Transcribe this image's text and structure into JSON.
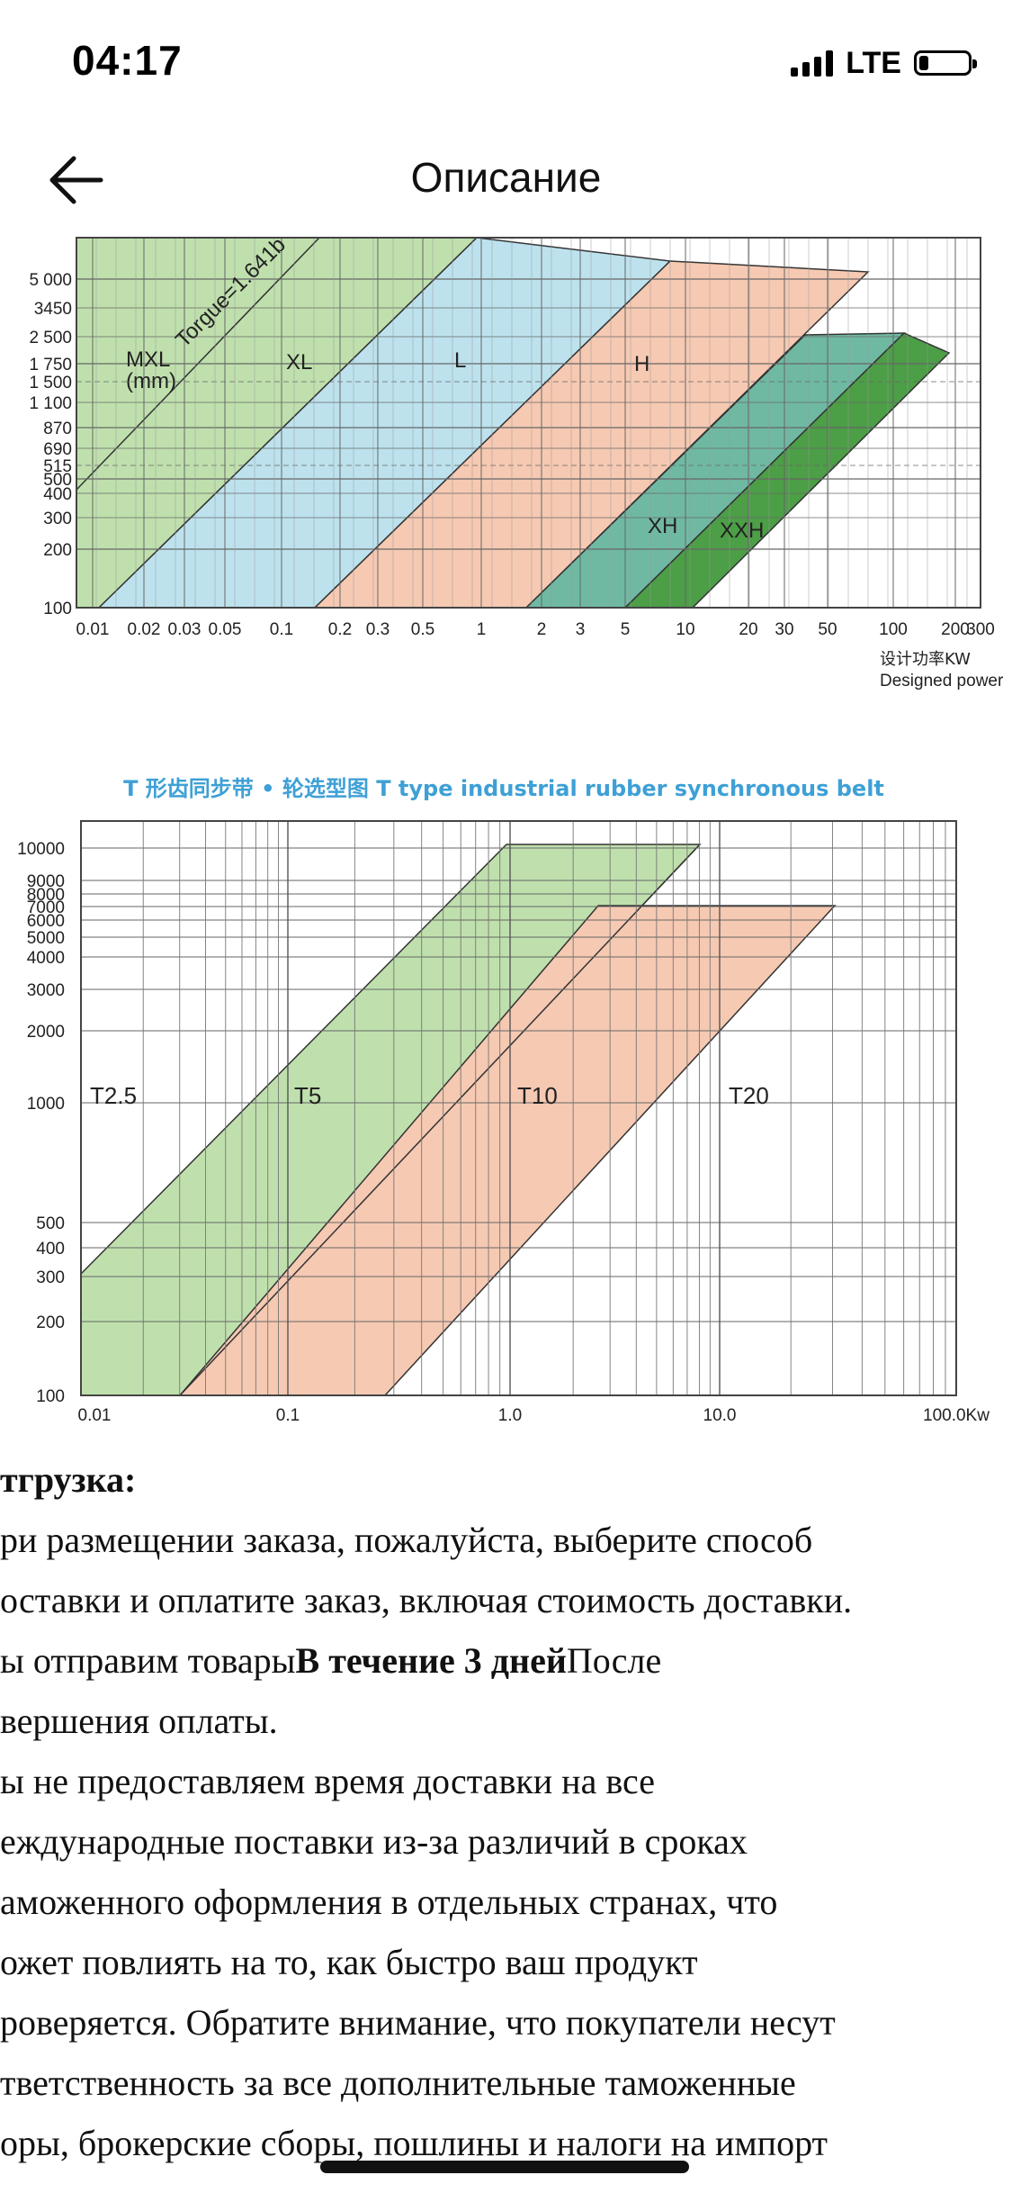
{
  "status_bar": {
    "time": "04:17",
    "network": "LTE",
    "battery_level": 0.2
  },
  "nav": {
    "title": "Описание",
    "back_icon": "arrow-left-icon"
  },
  "chart1": {
    "band_labels": [
      "MXL\n(mm)",
      "XL",
      "L",
      "H",
      "XH",
      "XXH"
    ],
    "annotation": "Torgue=1.641b",
    "y_ticks": [
      "5 000",
      "3450",
      "2 500",
      "1 750",
      "1 500",
      "1 100",
      "870",
      "690",
      "515",
      "500",
      "400",
      "300",
      "200",
      "100"
    ],
    "x_ticks": [
      "0.01",
      "0.02",
      "0.03",
      "0.05",
      "0.1",
      "0.2",
      "0.3",
      "0.5",
      "1",
      "2",
      "3",
      "5",
      "10",
      "20",
      "30",
      "50",
      "100",
      "200",
      "300"
    ],
    "x_label_cn": "设计功率KW",
    "x_label_en": "Designed power",
    "colors": {
      "gray": "#d9d9d9",
      "green": "#bfe0ad",
      "blue": "#bde2ee",
      "salmon": "#f6c9b2",
      "teal": "#6fb9a2",
      "dark_green": "#4c9e47"
    }
  },
  "chart2": {
    "title": "T 形齿同步带 • 轮选型图  T type industrial rubber synchronous belt",
    "band_labels": [
      "T2.5",
      "T5",
      "T10",
      "T20"
    ],
    "y_ticks": [
      "10000",
      "9000",
      "8000",
      "7000",
      "6000",
      "5000",
      "4000",
      "3000",
      "2000",
      "1000",
      "500",
      "400",
      "300",
      "200",
      "100"
    ],
    "x_ticks": [
      "0.01",
      "0.1",
      "1.0",
      "10.0",
      "100.0Kw"
    ],
    "colors": {
      "title": "#3ea0d6",
      "green": "#bfe0ad",
      "salmon": "#f6c9b2"
    }
  },
  "content": {
    "heading": "тгрузка:",
    "line1": "ри размещении заказа, пожалуйста, выберите способ",
    "line2": "оставки и оплатите заказ, включая стоимость доставки.",
    "line3_a": "ы отправим товары",
    "line3_b": "В течение 3 дней",
    "line3_c": "После",
    "line4": "вершения оплаты.",
    "line5": "ы не предоставляем время доставки на все",
    "line6": "еждународные поставки из-за различий в сроках",
    "line7": "аможенного оформления в отдельных странах, что",
    "line8": "ожет повлиять на то, как быстро ваш продукт",
    "line9": "роверяется. Обратите внимание, что покупатели несут",
    "line10": "тветственность за все дополнительные таможенные",
    "line11": "оры, брокерские сборы, пошлины и налоги на импорт"
  }
}
